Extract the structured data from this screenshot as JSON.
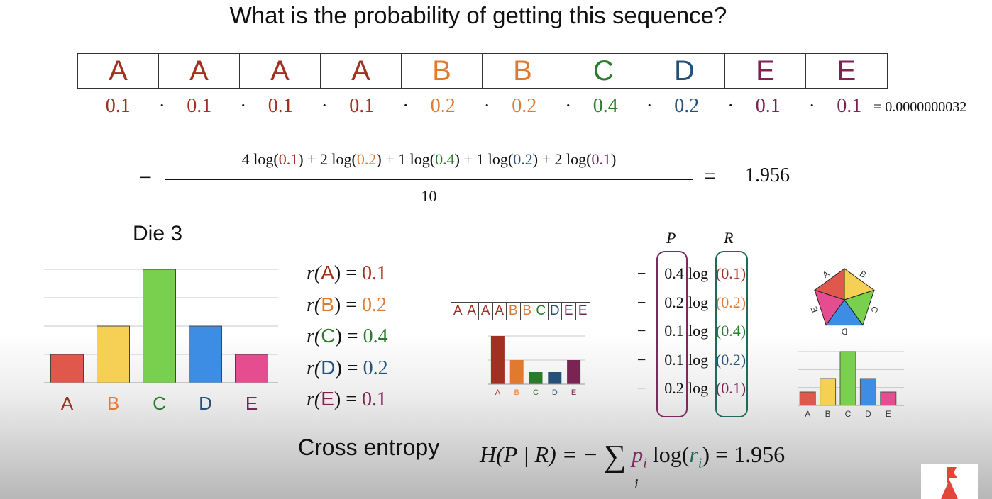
{
  "title": "What is the probability of getting this sequence?",
  "colors": {
    "A": "#a0301f",
    "B": "#e07a30",
    "C": "#2c7a2c",
    "D": "#24507a",
    "E": "#7b2453",
    "barA": "#e0584c",
    "barB": "#f6d055",
    "barC": "#79cf4e",
    "barD": "#3d8de5",
    "barE": "#e64c90",
    "P": "#7a2a5c",
    "R": "#1f6a5a"
  },
  "sequence": [
    "A",
    "A",
    "A",
    "A",
    "B",
    "B",
    "C",
    "D",
    "E",
    "E"
  ],
  "probabilities": [
    "0.1",
    "0.1",
    "0.1",
    "0.1",
    "0.2",
    "0.2",
    "0.4",
    "0.2",
    "0.1",
    "0.1"
  ],
  "dot": "·",
  "product_result": "= 0.0000000032",
  "fraction": {
    "minus": "−",
    "terms": [
      {
        "coef": "4 log(",
        "val": "0.1",
        "letter": "A",
        "sep": ") + "
      },
      {
        "coef": "2 log(",
        "val": "0.2",
        "letter": "B",
        "sep": ") + "
      },
      {
        "coef": "1 log(",
        "val": "0.4",
        "letter": "C",
        "sep": ") + "
      },
      {
        "coef": "1 log(",
        "val": "0.2",
        "letter": "D",
        "sep": ") + "
      },
      {
        "coef": "2 log(",
        "val": "0.1",
        "letter": "E",
        "sep": ")"
      }
    ],
    "denominator": "10",
    "equals": "=",
    "result": "1.956"
  },
  "die_title": "Die 3",
  "chart_data": [
    {
      "type": "bar",
      "categories": [
        "A",
        "B",
        "C",
        "D",
        "E"
      ],
      "values": [
        0.1,
        0.2,
        0.4,
        0.2,
        0.1
      ],
      "ylim": [
        0,
        0.4
      ],
      "grid": true,
      "title": "",
      "xlabel": "",
      "ylabel": ""
    },
    {
      "type": "bar",
      "categories": [
        "A",
        "B",
        "C",
        "D",
        "E"
      ],
      "values": [
        0.4,
        0.2,
        0.1,
        0.1,
        0.2
      ],
      "ylim": [
        0,
        0.4
      ],
      "grid": true,
      "title": "",
      "xlabel": "",
      "ylabel": ""
    },
    {
      "type": "bar",
      "categories": [
        "A",
        "B",
        "C",
        "D",
        "E"
      ],
      "values": [
        0.1,
        0.2,
        0.4,
        0.2,
        0.1
      ],
      "ylim": [
        0,
        0.4
      ],
      "grid": true,
      "title": "",
      "xlabel": "",
      "ylabel": ""
    },
    {
      "type": "pie",
      "categories": [
        "A",
        "B",
        "C",
        "D",
        "E"
      ],
      "values": [
        0.2,
        0.2,
        0.2,
        0.2,
        0.2
      ],
      "title": ""
    }
  ],
  "r_defs": [
    {
      "pre": "r(",
      "letter": "A",
      "post": ") = ",
      "val": "0.1"
    },
    {
      "pre": "r(",
      "letter": "B",
      "post": ") = ",
      "val": "0.2"
    },
    {
      "pre": "r(",
      "letter": "C",
      "post": ") = ",
      "val": "0.4"
    },
    {
      "pre": "r(",
      "letter": "D",
      "post": ") = ",
      "val": "0.2"
    },
    {
      "pre": "r(",
      "letter": "E",
      "post": ") = ",
      "val": "0.1"
    }
  ],
  "mini_sequence": [
    "A",
    "A",
    "A",
    "A",
    "B",
    "B",
    "C",
    "D",
    "E",
    "E"
  ],
  "pr_header": {
    "P": "P",
    "R": "R"
  },
  "pr_rows": [
    {
      "minus": "−",
      "p": "0.4",
      "log": "log",
      "r": "(0.1)",
      "rletter": "A"
    },
    {
      "minus": "−",
      "p": "0.2",
      "log": "log",
      "r": "(0.2)",
      "rletter": "B"
    },
    {
      "minus": "−",
      "p": "0.1",
      "log": "log",
      "r": "(0.4)",
      "rletter": "C"
    },
    {
      "minus": "−",
      "p": "0.1",
      "log": "log",
      "r": "(0.2)",
      "rletter": "D"
    },
    {
      "minus": "−",
      "p": "0.2",
      "log": "log",
      "r": "(0.1)",
      "rletter": "E"
    }
  ],
  "cross_entropy": {
    "label": "Cross entropy",
    "lhs": "H(P | R) = −",
    "sum": "∑",
    "p": "p",
    "p_sub": "i",
    "log": "log(",
    "r": "r",
    "r_sub": "i",
    "close": ")",
    "equals": " = ",
    "result": "1.956",
    "sum_sub": "i"
  }
}
